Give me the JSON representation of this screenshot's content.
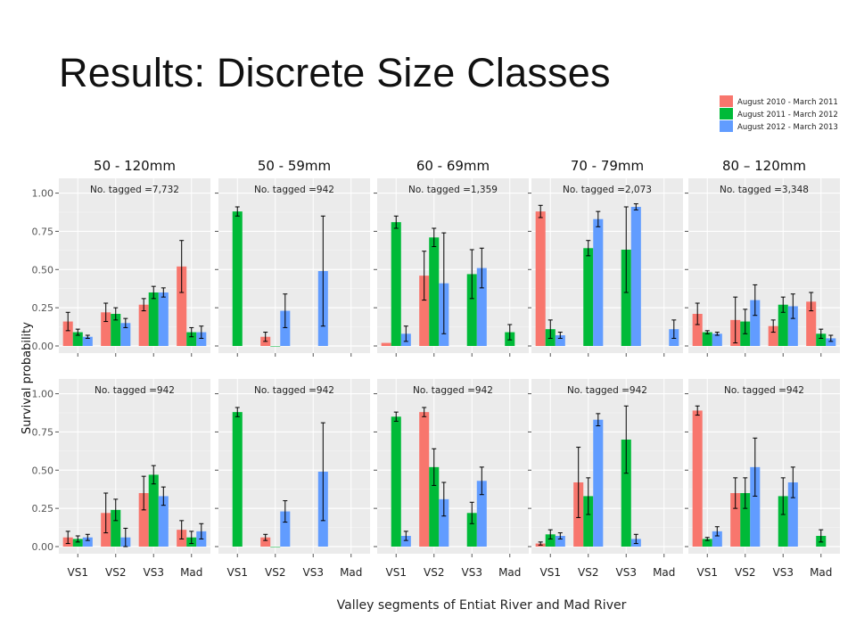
{
  "slide": {
    "title": "Results: Discrete Size Classes",
    "x_axis_title": "Valley segments of Entiat River and Mad River",
    "y_axis_title": "Survival probability"
  },
  "legend": [
    {
      "name": "August 2010 - March 2011",
      "color": "#F8766D"
    },
    {
      "name": "August 2011 - March 2012",
      "color": "#00BA38"
    },
    {
      "name": "August 2012 - March 2013",
      "color": "#619CFF"
    }
  ],
  "chart_data": {
    "type": "bar",
    "categories": [
      "VS1",
      "VS2",
      "VS3",
      "Mad"
    ],
    "y_ticks": [
      "0.00",
      "0.25",
      "0.50",
      "0.75",
      "1.00"
    ],
    "ylim": [
      0,
      1.05
    ],
    "grid": true,
    "columns": [
      "50 - 120mm",
      "50 - 59mm",
      "60 - 69mm",
      "70 - 79mm",
      "80 – 120mm"
    ],
    "panels": [
      {
        "row": 0,
        "col": 0,
        "note": "No. tagged =7,732",
        "series": [
          {
            "values": [
              0.16,
              0.22,
              0.27,
              0.52
            ],
            "err": [
              0.06,
              0.06,
              0.04,
              0.17
            ]
          },
          {
            "values": [
              0.09,
              0.21,
              0.35,
              0.09
            ],
            "err": [
              0.02,
              0.04,
              0.04,
              0.03
            ]
          },
          {
            "values": [
              0.06,
              0.15,
              0.35,
              0.09
            ],
            "err": [
              0.01,
              0.03,
              0.03,
              0.04
            ]
          }
        ]
      },
      {
        "row": 0,
        "col": 1,
        "note": "No. tagged =942",
        "series": [
          {
            "values": [
              null,
              0.06,
              null,
              null
            ],
            "err": [
              0,
              0.03,
              0,
              0
            ]
          },
          {
            "values": [
              0.88,
              0.0,
              null,
              null
            ],
            "err": [
              0.03,
              0.0,
              0,
              0
            ]
          },
          {
            "values": [
              null,
              0.23,
              0.49,
              null
            ],
            "err": [
              0,
              0.11,
              0.36,
              0
            ]
          }
        ]
      },
      {
        "row": 0,
        "col": 2,
        "note": "No. tagged =1,359",
        "series": [
          {
            "values": [
              0.02,
              0.46,
              null,
              null
            ],
            "err": [
              0.0,
              0.16,
              0,
              0
            ]
          },
          {
            "values": [
              0.81,
              0.71,
              0.47,
              0.09
            ],
            "err": [
              0.04,
              0.06,
              0.16,
              0.05
            ]
          },
          {
            "values": [
              0.08,
              0.41,
              0.51,
              null
            ],
            "err": [
              0.05,
              0.33,
              0.13,
              0
            ]
          }
        ]
      },
      {
        "row": 0,
        "col": 3,
        "note": "No. tagged =2,073",
        "series": [
          {
            "values": [
              0.88,
              null,
              null,
              null
            ],
            "err": [
              0.04,
              0,
              0,
              0
            ]
          },
          {
            "values": [
              0.11,
              0.64,
              0.63,
              null
            ],
            "err": [
              0.06,
              0.05,
              0.28,
              0
            ]
          },
          {
            "values": [
              0.07,
              0.83,
              0.91,
              0.11
            ],
            "err": [
              0.02,
              0.05,
              0.02,
              0.06
            ]
          }
        ]
      },
      {
        "row": 0,
        "col": 4,
        "note": "No. tagged =3,348",
        "series": [
          {
            "values": [
              0.21,
              0.17,
              0.13,
              0.29
            ],
            "err": [
              0.07,
              0.15,
              0.04,
              0.06
            ]
          },
          {
            "values": [
              0.09,
              0.16,
              0.27,
              0.08
            ],
            "err": [
              0.01,
              0.08,
              0.05,
              0.03
            ]
          },
          {
            "values": [
              0.08,
              0.3,
              0.26,
              0.05
            ],
            "err": [
              0.01,
              0.1,
              0.08,
              0.02
            ]
          }
        ]
      },
      {
        "row": 1,
        "col": 0,
        "note": "No. tagged =942",
        "series": [
          {
            "values": [
              0.06,
              0.22,
              0.35,
              0.11
            ],
            "err": [
              0.04,
              0.13,
              0.11,
              0.06
            ]
          },
          {
            "values": [
              0.05,
              0.24,
              0.47,
              0.06
            ],
            "err": [
              0.02,
              0.07,
              0.06,
              0.04
            ]
          },
          {
            "values": [
              0.06,
              0.06,
              0.33,
              0.1
            ],
            "err": [
              0.02,
              0.06,
              0.06,
              0.05
            ]
          }
        ]
      },
      {
        "row": 1,
        "col": 1,
        "note": "No. tagged =942",
        "series": [
          {
            "values": [
              null,
              0.06,
              null,
              null
            ],
            "err": [
              0,
              0.02,
              0,
              0
            ]
          },
          {
            "values": [
              0.88,
              0.0,
              null,
              null
            ],
            "err": [
              0.03,
              0.0,
              0,
              0
            ]
          },
          {
            "values": [
              null,
              0.23,
              0.49,
              null
            ],
            "err": [
              0,
              0.07,
              0.32,
              0
            ]
          }
        ]
      },
      {
        "row": 1,
        "col": 2,
        "note": "No. tagged =942",
        "series": [
          {
            "values": [
              null,
              0.88,
              null,
              null
            ],
            "err": [
              0,
              0.03,
              0,
              0
            ]
          },
          {
            "values": [
              0.85,
              0.52,
              0.22,
              null
            ],
            "err": [
              0.03,
              0.12,
              0.07,
              0
            ]
          },
          {
            "values": [
              0.07,
              0.31,
              0.43,
              null
            ],
            "err": [
              0.03,
              0.11,
              0.09,
              0
            ]
          }
        ]
      },
      {
        "row": 1,
        "col": 3,
        "note": "No. tagged =942",
        "series": [
          {
            "values": [
              0.02,
              0.42,
              null,
              null
            ],
            "err": [
              0.01,
              0.23,
              0,
              0
            ]
          },
          {
            "values": [
              0.08,
              0.33,
              0.7,
              null
            ],
            "err": [
              0.03,
              0.12,
              0.22,
              0
            ]
          },
          {
            "values": [
              0.07,
              0.83,
              0.05,
              null
            ],
            "err": [
              0.02,
              0.04,
              0.03,
              0
            ]
          }
        ]
      },
      {
        "row": 1,
        "col": 4,
        "note": "No. tagged =942",
        "series": [
          {
            "values": [
              0.89,
              0.35,
              null,
              null
            ],
            "err": [
              0.03,
              0.1,
              0,
              0
            ]
          },
          {
            "values": [
              0.05,
              0.35,
              0.33,
              0.07
            ],
            "err": [
              0.01,
              0.1,
              0.12,
              0.04
            ]
          },
          {
            "values": [
              0.1,
              0.52,
              0.42,
              null
            ],
            "err": [
              0.03,
              0.19,
              0.1,
              0
            ]
          }
        ]
      }
    ]
  }
}
